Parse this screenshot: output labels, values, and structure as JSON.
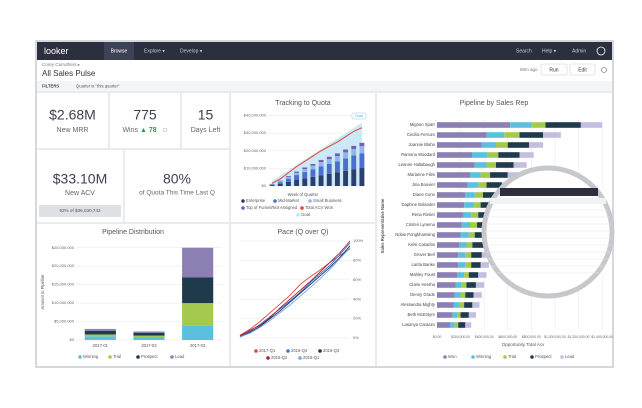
{
  "nav": {
    "logo": "looker",
    "items": [
      "Browse",
      "Explore ▾",
      "Develop ▾"
    ],
    "right": [
      "Search",
      "Help ▾",
      "Admin"
    ]
  },
  "header": {
    "breadcrumb": "Corey Carruthers ▸",
    "title": "All Sales Pulse",
    "updated": "59m ago",
    "run": "Run",
    "edit": "Edit"
  },
  "filters": {
    "label": "FILTERS",
    "filter": "Quarter is \"this quarter\""
  },
  "tiles": {
    "new_mrr": {
      "value": "$2.68M",
      "label": "New MRR"
    },
    "wins": {
      "value": 775,
      "label": "Wins",
      "change": "▲ 78"
    },
    "days_left": {
      "value": 15,
      "label": "Days Left"
    },
    "new_acv": {
      "value": "$33.10M",
      "label": "New ACV",
      "progress": "92% of $36,030,742"
    },
    "quota_last_q": {
      "value": "80%",
      "label": "of Quota This Time Last Q"
    },
    "tracking": {
      "type": "bar-line",
      "title": "Tracking to Quota",
      "x_label": "Week of Quarter",
      "annotation": "Goal",
      "ylim": [
        0,
        42000000
      ],
      "yticks": [
        {
          "value": 0,
          "label": "$0"
        },
        {
          "value": 10000000,
          "label": "$10,000,000"
        },
        {
          "value": 20000000,
          "label": "$20,000,000"
        },
        {
          "value": 30000000,
          "label": "$30,000,000"
        },
        {
          "value": 40000000,
          "label": "$40,000,000"
        }
      ],
      "series": [
        {
          "name": "Enterprise",
          "type": "bar",
          "color": "#2c3e6b",
          "values": [
            500000,
            1200000,
            2300000,
            3400000,
            4300000,
            5200000,
            6100000,
            6900000,
            7700000,
            8600000,
            9500000,
            10200000
          ]
        },
        {
          "name": "Mid-Market",
          "type": "bar",
          "color": "#4a6fd1",
          "values": [
            400000,
            1000000,
            1900000,
            2800000,
            3600000,
            4300000,
            5100000,
            5700000,
            6300000,
            7100000,
            7800000,
            8400000
          ]
        },
        {
          "name": "Small Business",
          "type": "bar",
          "color": "#8fb8e8",
          "values": [
            200000,
            500000,
            900000,
            1300000,
            1700000,
            2000000,
            2400000,
            2700000,
            3000000,
            3400000,
            3700000,
            4000000
          ]
        },
        {
          "name": "Top of Funnel/Not Assigned",
          "type": "bar",
          "color": "#7a5cb0",
          "values": [
            100000,
            300000,
            500000,
            700000,
            900000,
            1000000,
            1200000,
            1300000,
            1500000,
            1600000,
            1800000,
            1900000
          ]
        },
        {
          "name": "Total ACV Won",
          "type": "line",
          "color": "#e0453a",
          "values": [
            1500000,
            4000000,
            7500000,
            11000000,
            14000000,
            17000000,
            20000000,
            22500000,
            25000000,
            28000000,
            31000000,
            33100000
          ]
        },
        {
          "name": "Goal",
          "type": "area",
          "color": "#bfe3f5",
          "values": [
            3000000,
            6000000,
            9000000,
            12000000,
            15000000,
            18000000,
            21000000,
            24000000,
            27000000,
            30000000,
            33000000,
            36000000
          ]
        }
      ]
    },
    "pipeline_distribution": {
      "type": "stacked-bar",
      "title": "Pipeline Distribution",
      "y_label": "Amount in Pipeline",
      "categories": [
        "2017-01",
        "2017-02",
        "2017-03"
      ],
      "ylim": [
        0,
        26000000
      ],
      "yticks": [
        {
          "value": 0,
          "label": "$0"
        },
        {
          "value": 5000000,
          "label": "$5,000,000"
        },
        {
          "value": 10000000,
          "label": "$10,000,000"
        },
        {
          "value": 15000000,
          "label": "$15,000,000"
        },
        {
          "value": 20000000,
          "label": "$20,000,000"
        },
        {
          "value": 25000000,
          "label": "$25,000,000"
        }
      ],
      "series": [
        {
          "name": "Winning",
          "color": "#5bc0de",
          "values": [
            1000000,
            800000,
            4000000
          ]
        },
        {
          "name": "Trial",
          "color": "#a4c94e",
          "values": [
            500000,
            400000,
            6000000
          ]
        },
        {
          "name": "Prospect",
          "color": "#1f3a4d",
          "values": [
            1000000,
            700000,
            7000000
          ]
        },
        {
          "name": "Lead",
          "color": "#8b7fb3",
          "values": [
            500000,
            400000,
            8000000
          ]
        }
      ]
    },
    "pace": {
      "type": "line",
      "title": "Pace (Q over Q)",
      "ylim": [
        0,
        100
      ],
      "yticks": [
        {
          "value": 0,
          "label": "0%"
        },
        {
          "value": 20,
          "label": "20%"
        },
        {
          "value": 40,
          "label": "40%"
        },
        {
          "value": 60,
          "label": "60%"
        },
        {
          "value": 80,
          "label": "80%"
        },
        {
          "value": 100,
          "label": "100%"
        }
      ],
      "series": [
        {
          "name": "2017-Q1",
          "color": "#e0453a",
          "values": [
            3,
            9,
            17,
            26,
            35,
            44,
            55,
            63,
            70,
            78,
            85,
            92
          ]
        },
        {
          "name": "2016-Q4",
          "color": "#3a78d6",
          "values": [
            2,
            7,
            14,
            22,
            30,
            38,
            47,
            57,
            66,
            75,
            86,
            98
          ]
        },
        {
          "name": "2016-Q3",
          "color": "#1f2f5e",
          "values": [
            1,
            6,
            12,
            20,
            28,
            37,
            46,
            55,
            64,
            73,
            83,
            95
          ]
        },
        {
          "name": "2016-Q2",
          "color": "#a5232f",
          "values": [
            2,
            8,
            13,
            21,
            31,
            40,
            49,
            58,
            68,
            78,
            88,
            100
          ]
        },
        {
          "name": "2016-Q1",
          "color": "#6fa8e8",
          "values": [
            1,
            5,
            11,
            18,
            26,
            34,
            43,
            52,
            61,
            71,
            82,
            93
          ]
        }
      ]
    },
    "pipeline_by_rep": {
      "type": "stacked-hbar",
      "title": "Pipeline by Sales Rep",
      "x_label": "Opportunity Total Acv",
      "y_label": "Sales Representative Name",
      "categories": [
        "Mignon Sparr",
        "Cecilia Ferruzo",
        "Joannie Blaho",
        "Ramona Woodard",
        "Leanne Haltabaugh",
        "Marianne Files",
        "Jina Bouvier",
        "Diane Conn",
        "Daphine Bolander",
        "Rena Rosier",
        "Cristen Lynema",
        "Nobie Pongkhamsing",
        "Kelsi Casados",
        "Grover Berl",
        "Larita Banke",
        "Mahley Foust",
        "Claire Hersha",
        "Denny Grade",
        "Alessandra Mighty",
        "Beth McEntyre",
        "Lasonya Caraazo"
      ],
      "xlim": [
        0,
        1450000
      ],
      "xticks": [
        {
          "value": 0,
          "label": "$0.00"
        },
        {
          "value": 200000,
          "label": "$200,000.00"
        },
        {
          "value": 400000,
          "label": "$400,000.00"
        },
        {
          "value": 600000,
          "label": "$600,000.00"
        },
        {
          "value": 800000,
          "label": "$800,000.00"
        },
        {
          "value": 1000000,
          "label": "$1,000,000.00"
        },
        {
          "value": 1200000,
          "label": "$1,200,000.00"
        },
        {
          "value": 1400000,
          "label": "$1,400,000.00"
        }
      ],
      "series": [
        {
          "name": "Won",
          "color": "#8b7fb3",
          "values": [
            620000,
            420000,
            380000,
            300000,
            320000,
            280000,
            260000,
            240000,
            230000,
            220000,
            210000,
            200000,
            190000,
            180000,
            180000,
            170000,
            160000,
            150000,
            140000,
            130000,
            110000
          ]
        },
        {
          "name": "Winning",
          "color": "#5bc0de",
          "values": [
            180000,
            150000,
            120000,
            130000,
            100000,
            90000,
            90000,
            80000,
            80000,
            70000,
            70000,
            70000,
            60000,
            60000,
            60000,
            60000,
            50000,
            50000,
            50000,
            40000,
            40000
          ]
        },
        {
          "name": "Trial",
          "color": "#a4c94e",
          "values": [
            120000,
            130000,
            100000,
            90000,
            80000,
            80000,
            70000,
            70000,
            60000,
            60000,
            60000,
            50000,
            50000,
            50000,
            50000,
            40000,
            40000,
            40000,
            40000,
            30000,
            30000
          ]
        },
        {
          "name": "Prospect",
          "color": "#1f3a4d",
          "values": [
            300000,
            200000,
            180000,
            180000,
            150000,
            150000,
            130000,
            120000,
            110000,
            110000,
            100000,
            100000,
            100000,
            90000,
            80000,
            80000,
            80000,
            70000,
            70000,
            70000,
            60000
          ]
        },
        {
          "name": "Lead",
          "color": "#c3bde0",
          "values": [
            180000,
            150000,
            120000,
            120000,
            110000,
            100000,
            100000,
            90000,
            90000,
            80000,
            80000,
            80000,
            80000,
            80000,
            70000,
            70000,
            70000,
            70000,
            60000,
            60000,
            50000
          ]
        }
      ]
    }
  }
}
